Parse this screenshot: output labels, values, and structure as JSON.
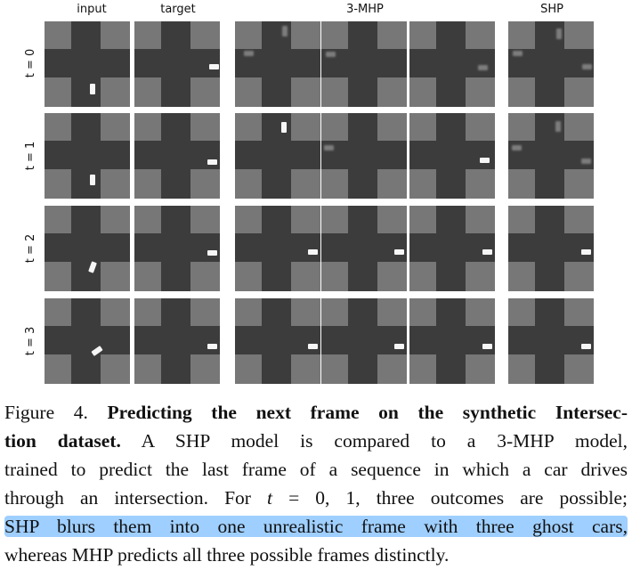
{
  "columns": {
    "input": "input",
    "target": "target",
    "mhp": "3-MHP",
    "shp": "SHP"
  },
  "rows": [
    "t = 0",
    "t = 1",
    "t = 2",
    "t = 3"
  ],
  "caption": {
    "fig_label": "Figure 4.",
    "title_line1": "Predicting the next frame on the synthetic Intersec-",
    "title_line2": "tion dataset.",
    "text_line2": " A SHP model is compared to a 3-MHP model,",
    "line3": "trained to predict the last frame of a sequence in which a car drives",
    "line4_a": "through an intersection. For ",
    "line4_math": "t",
    "line4_b": " = 0, 1, three outcomes are possible;",
    "line5_highlight": "SHP blurs them into one unrealistic frame with three ghost cars,",
    "line6": "whereas MHP predicts all three possible frames distinctly."
  }
}
